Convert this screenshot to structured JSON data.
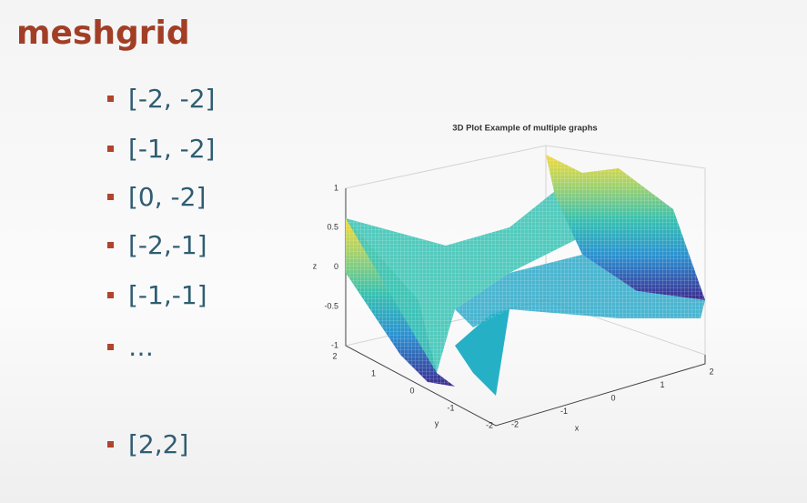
{
  "slide": {
    "title": "meshgrid",
    "bullets": [
      "[-2, -2]",
      "[-1, -2]",
      "[0, -2]",
      "[-2,-1]",
      "[-1,-1]",
      "…",
      "[2,2]"
    ],
    "figure": {
      "title": "3D Plot Example of multiple graphs",
      "xlabel": "x",
      "ylabel": "y",
      "zlabel": "z",
      "xticks": [
        -2,
        -1,
        0,
        1,
        2
      ],
      "yticks": [
        2,
        1,
        0,
        -1,
        -2
      ],
      "zticks": [
        1,
        0.5,
        0,
        -0.5,
        -1
      ]
    }
  }
}
